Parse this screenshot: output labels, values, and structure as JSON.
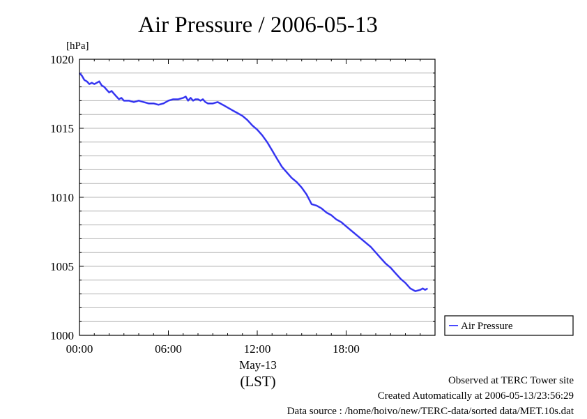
{
  "chart_data": {
    "type": "line",
    "title": "Air Pressure / 2006-05-13",
    "ylabel": "[hPa]",
    "ylim": [
      1000,
      1020
    ],
    "yticks": [
      "1000",
      "1005",
      "1010",
      "1015",
      "1020"
    ],
    "xlim_hours": [
      0,
      24
    ],
    "xticks": [
      "00:00",
      "06:00",
      "12:00",
      "18:00"
    ],
    "xlabel_date": "May-13",
    "xlabel_unit": "(LST)",
    "grid": true,
    "legend_position": "right",
    "series": [
      {
        "name": "Air Pressure",
        "color": "#4a4aff",
        "x_hours": [
          0.0,
          0.17,
          0.33,
          0.5,
          0.67,
          0.83,
          1.0,
          1.17,
          1.33,
          1.5,
          1.67,
          1.83,
          2.0,
          2.17,
          2.33,
          2.5,
          2.67,
          2.83,
          3.0,
          3.33,
          3.67,
          4.0,
          4.33,
          4.67,
          5.0,
          5.33,
          5.67,
          6.0,
          6.33,
          6.67,
          7.0,
          7.17,
          7.33,
          7.5,
          7.67,
          7.83,
          8.0,
          8.17,
          8.33,
          8.5,
          8.67,
          9.0,
          9.33,
          9.67,
          10.0,
          10.33,
          10.67,
          11.0,
          11.33,
          11.67,
          12.0,
          12.33,
          12.67,
          13.0,
          13.33,
          13.67,
          14.0,
          14.33,
          14.67,
          15.0,
          15.33,
          15.67,
          16.0,
          16.33,
          16.67,
          17.0,
          17.33,
          17.67,
          18.0,
          18.33,
          18.67,
          19.0,
          19.33,
          19.67,
          20.0,
          20.33,
          20.67,
          21.0,
          21.33,
          21.67,
          22.0,
          22.33,
          22.67,
          23.0,
          23.17,
          23.33,
          23.5
        ],
        "values": [
          1019.0,
          1018.8,
          1018.5,
          1018.4,
          1018.2,
          1018.3,
          1018.2,
          1018.3,
          1018.4,
          1018.1,
          1018.0,
          1017.8,
          1017.6,
          1017.7,
          1017.5,
          1017.3,
          1017.1,
          1017.2,
          1017.0,
          1017.0,
          1016.9,
          1017.0,
          1016.9,
          1016.8,
          1016.8,
          1016.7,
          1016.8,
          1017.0,
          1017.1,
          1017.1,
          1017.2,
          1017.3,
          1017.0,
          1017.2,
          1017.0,
          1017.1,
          1017.1,
          1017.0,
          1017.1,
          1016.9,
          1016.8,
          1016.8,
          1016.9,
          1016.7,
          1016.5,
          1016.3,
          1016.1,
          1015.9,
          1015.6,
          1015.2,
          1014.9,
          1014.5,
          1014.0,
          1013.4,
          1012.8,
          1012.2,
          1011.8,
          1011.4,
          1011.1,
          1010.7,
          1010.2,
          1009.5,
          1009.4,
          1009.2,
          1008.9,
          1008.7,
          1008.4,
          1008.2,
          1007.9,
          1007.6,
          1007.3,
          1007.0,
          1006.7,
          1006.4,
          1006.0,
          1005.6,
          1005.2,
          1004.9,
          1004.5,
          1004.1,
          1003.8,
          1003.4,
          1003.2,
          1003.3,
          1003.4,
          1003.3,
          1003.4
        ]
      }
    ]
  },
  "footer": {
    "site": "Observed at TERC Tower site",
    "created": "Created Automatically at 2006-05-13/23:56:29",
    "source": "Data source : /home/hoivo/new/TERC-data/sorted  data/MET.10s.dat"
  }
}
